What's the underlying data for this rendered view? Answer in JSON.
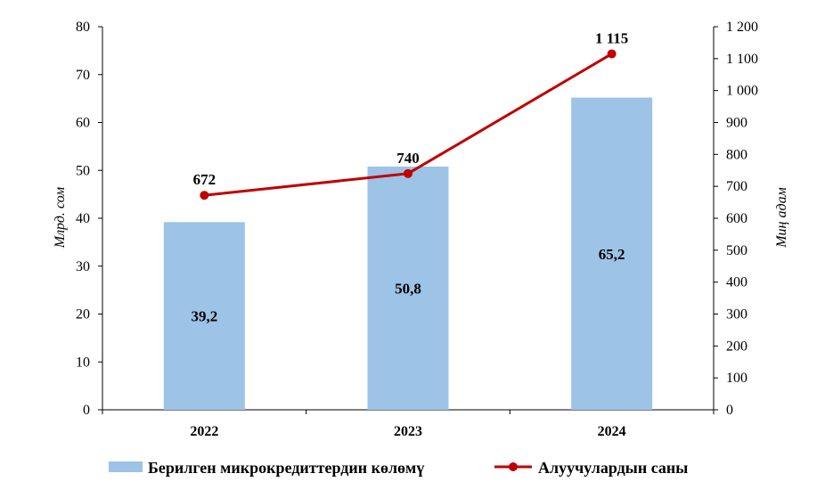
{
  "chart_data": {
    "type": "bar",
    "categories": [
      "2022",
      "2023",
      "2024"
    ],
    "series": [
      {
        "name": "Берилген микрокредиттердин көлөмү",
        "kind": "bar",
        "axis": "left",
        "values": [
          39.2,
          50.8,
          65.2
        ],
        "labels": [
          "39,2",
          "50,8",
          "65,2"
        ],
        "color": "#9dc3e6"
      },
      {
        "name": "Алуучулардын саны",
        "kind": "line",
        "axis": "right",
        "values": [
          672,
          740,
          1115
        ],
        "labels": [
          "672",
          "740",
          "1 115"
        ],
        "color": "#c00000"
      }
    ],
    "ylabel": "Млрд. сом",
    "y2label": "Миң адам",
    "ylim": [
      0,
      80
    ],
    "y2lim": [
      0,
      1200
    ],
    "yticks": [
      "0",
      "10",
      "20",
      "30",
      "40",
      "50",
      "60",
      "70",
      "80"
    ],
    "y2ticks": [
      "0",
      "100",
      "200",
      "300",
      "400",
      "500",
      "600",
      "700",
      "800",
      "900",
      "1 000",
      "1 100",
      "1 200"
    ],
    "legend_position": "bottom",
    "grid": false
  }
}
